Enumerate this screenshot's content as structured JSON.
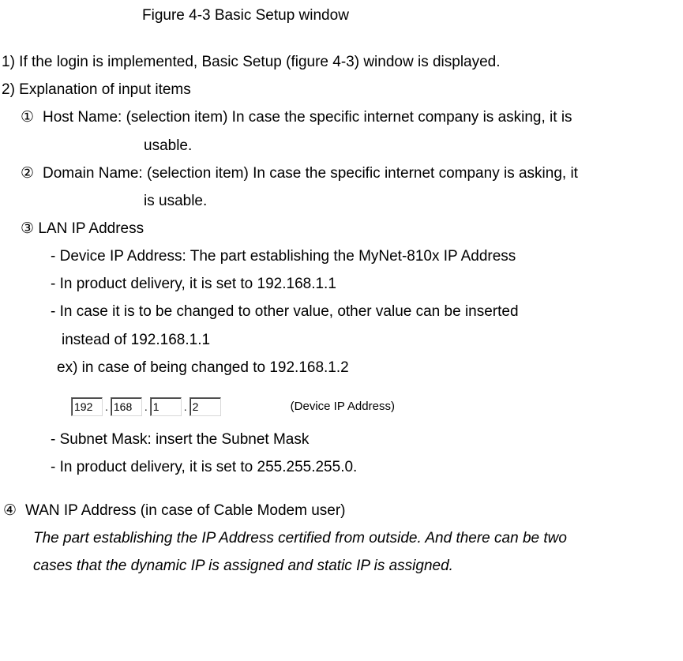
{
  "figure_caption": "Figure 4-3 Basic Setup window",
  "line_1": "1) If the login is implemented, Basic Setup (figure 4-3) window is displayed.",
  "line_2": "2) Explanation of input items",
  "circled": {
    "m1": "①",
    "m2": "②",
    "m3": "③",
    "m4": "④"
  },
  "item1_a": "Host Name: (selection item) In case the specific internet company is asking, it is",
  "item1_b": "usable.",
  "item2_a": "Domain Name: (selection item) In case the specific internet company is asking, it",
  "item2_b": "is usable.",
  "item3_title": "LAN IP Address",
  "item3_d1": "- Device IP Address: The part establishing the MyNet-810x IP Address",
  "item3_d2": "- In product delivery, it is set to 192.168.1.1",
  "item3_d3": "- In case it is to be changed to other value, other value can be inserted",
  "item3_d3b": "instead of 192.168.1.1",
  "item3_ex": "ex) in case of being changed to 192.168.1.2",
  "ip": {
    "o1": "192",
    "o2": "168",
    "o3": "1",
    "o4": "2",
    "dot": ".",
    "label": "(Device IP Address)"
  },
  "item3_d4": "- Subnet Mask: insert the Subnet Mask",
  "item3_d5": "- In product delivery, it is set to 255.255.255.0.",
  "item4_title": "WAN IP Address   (in case of Cable Modem user)",
  "item4_body_a": "The part establishing the IP Address certified from outside. And there can be two",
  "item4_body_b": "cases that the dynamic IP is assigned and static IP is assigned.",
  "colors": {
    "text": "#000000",
    "bg": "#ffffff"
  }
}
